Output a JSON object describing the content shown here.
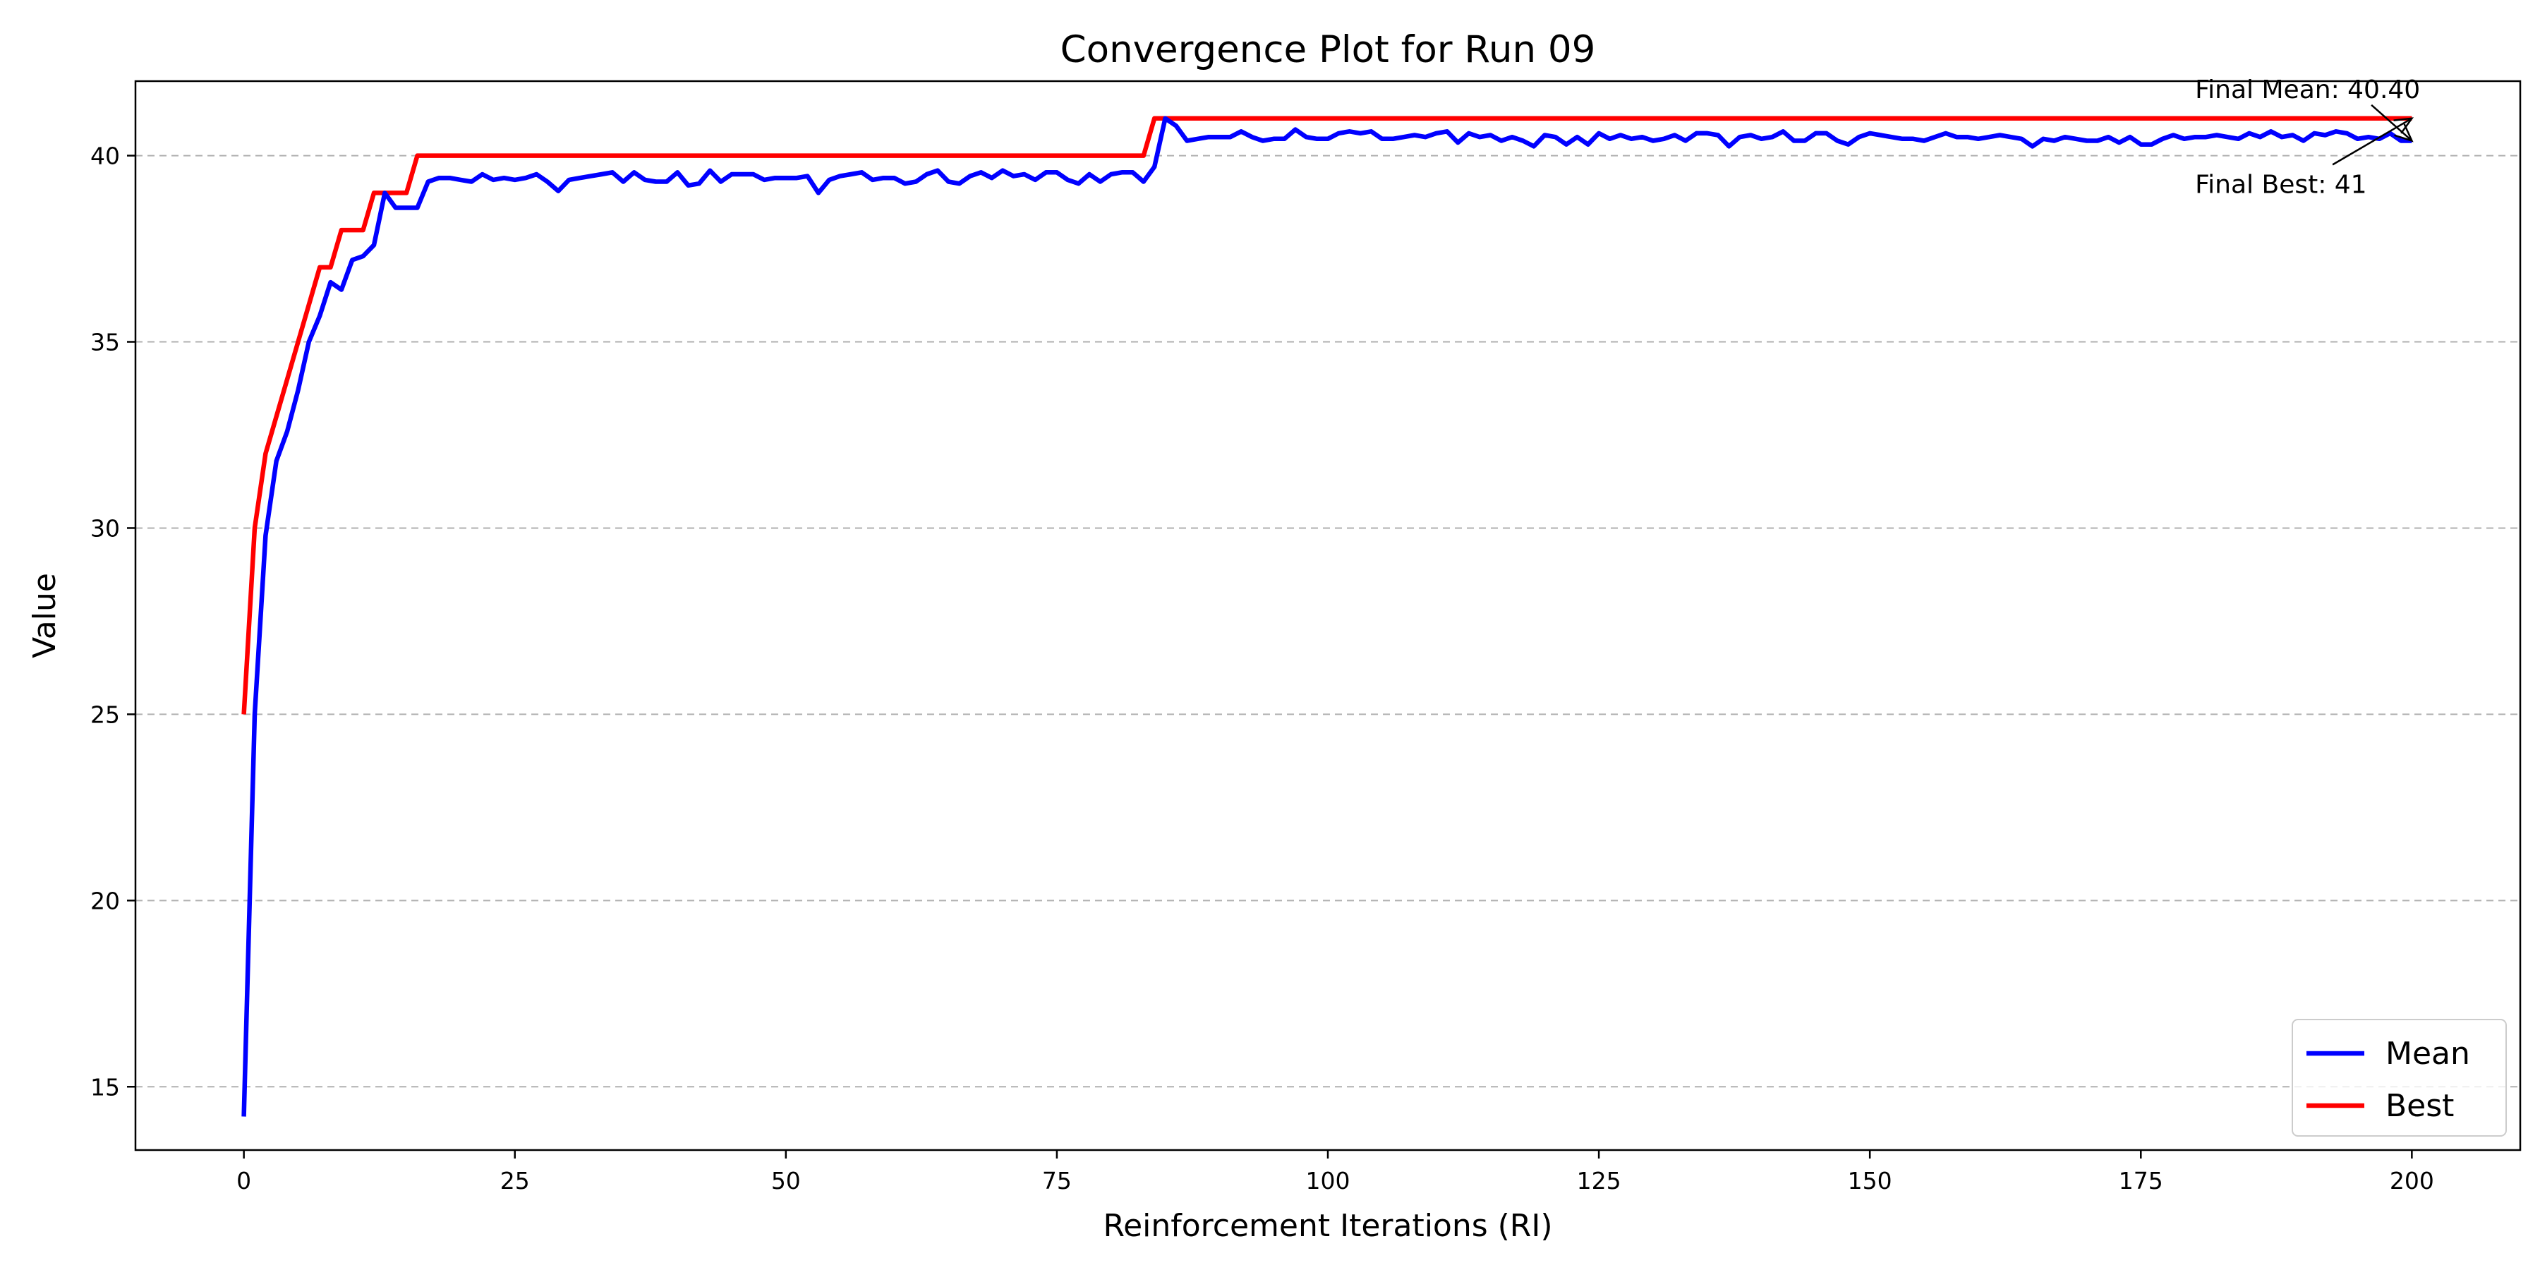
{
  "chart_data": {
    "type": "line",
    "title": "Convergence Plot for Run 09",
    "xlabel": "Reinforcement Iterations (RI)",
    "ylabel": "Value",
    "xlim": [
      -10,
      210
    ],
    "ylim": [
      13.3,
      42.0
    ],
    "xticks": [
      0,
      25,
      50,
      75,
      100,
      125,
      150,
      175,
      200
    ],
    "yticks": [
      15,
      20,
      25,
      30,
      35,
      40
    ],
    "grid": "horizontal-dashed",
    "legend_position": "bottom-right",
    "series": [
      {
        "name": "Mean",
        "color": "#0000ff",
        "points": [
          [
            0,
            14.2
          ],
          [
            1,
            25.0
          ],
          [
            2,
            29.8
          ],
          [
            3,
            31.8
          ],
          [
            4,
            32.6
          ],
          [
            5,
            33.7
          ],
          [
            6,
            35.0
          ],
          [
            7,
            35.7
          ],
          [
            8,
            36.6
          ],
          [
            9,
            36.4
          ],
          [
            10,
            37.2
          ],
          [
            11,
            37.3
          ],
          [
            12,
            37.6
          ],
          [
            13,
            39.0
          ],
          [
            14,
            38.6
          ],
          [
            15,
            38.6
          ],
          [
            16,
            38.6
          ],
          [
            17,
            39.3
          ],
          [
            18,
            39.4
          ],
          [
            19,
            39.4
          ],
          [
            20,
            39.35
          ],
          [
            21,
            39.3
          ],
          [
            22,
            39.5
          ],
          [
            23,
            39.35
          ],
          [
            24,
            39.4
          ],
          [
            25,
            39.35
          ],
          [
            26,
            39.4
          ],
          [
            27,
            39.5
          ],
          [
            28,
            39.3
          ],
          [
            29,
            39.05
          ],
          [
            30,
            39.35
          ],
          [
            31,
            39.4
          ],
          [
            32,
            39.45
          ],
          [
            33,
            39.5
          ],
          [
            34,
            39.55
          ],
          [
            35,
            39.3
          ],
          [
            36,
            39.55
          ],
          [
            37,
            39.35
          ],
          [
            38,
            39.3
          ],
          [
            39,
            39.3
          ],
          [
            40,
            39.55
          ],
          [
            41,
            39.2
          ],
          [
            42,
            39.25
          ],
          [
            43,
            39.6
          ],
          [
            44,
            39.3
          ],
          [
            45,
            39.5
          ],
          [
            46,
            39.5
          ],
          [
            47,
            39.5
          ],
          [
            48,
            39.35
          ],
          [
            49,
            39.4
          ],
          [
            50,
            39.4
          ],
          [
            51,
            39.4
          ],
          [
            52,
            39.45
          ],
          [
            53,
            39.0
          ],
          [
            54,
            39.35
          ],
          [
            55,
            39.45
          ],
          [
            56,
            39.5
          ],
          [
            57,
            39.55
          ],
          [
            58,
            39.35
          ],
          [
            59,
            39.4
          ],
          [
            60,
            39.4
          ],
          [
            61,
            39.25
          ],
          [
            62,
            39.3
          ],
          [
            63,
            39.5
          ],
          [
            64,
            39.6
          ],
          [
            65,
            39.3
          ],
          [
            66,
            39.25
          ],
          [
            67,
            39.45
          ],
          [
            68,
            39.55
          ],
          [
            69,
            39.4
          ],
          [
            70,
            39.6
          ],
          [
            71,
            39.45
          ],
          [
            72,
            39.5
          ],
          [
            73,
            39.35
          ],
          [
            74,
            39.55
          ],
          [
            75,
            39.55
          ],
          [
            76,
            39.35
          ],
          [
            77,
            39.25
          ],
          [
            78,
            39.5
          ],
          [
            79,
            39.3
          ],
          [
            80,
            39.5
          ],
          [
            81,
            39.55
          ],
          [
            82,
            39.55
          ],
          [
            83,
            39.3
          ],
          [
            84,
            39.7
          ],
          [
            85,
            41.0
          ],
          [
            86,
            40.8
          ],
          [
            87,
            40.4
          ],
          [
            88,
            40.45
          ],
          [
            89,
            40.5
          ],
          [
            90,
            40.5
          ],
          [
            91,
            40.5
          ],
          [
            92,
            40.65
          ],
          [
            93,
            40.5
          ],
          [
            94,
            40.4
          ],
          [
            95,
            40.45
          ],
          [
            96,
            40.45
          ],
          [
            97,
            40.7
          ],
          [
            98,
            40.5
          ],
          [
            99,
            40.45
          ],
          [
            100,
            40.45
          ],
          [
            101,
            40.6
          ],
          [
            102,
            40.65
          ],
          [
            103,
            40.6
          ],
          [
            104,
            40.65
          ],
          [
            105,
            40.45
          ],
          [
            106,
            40.45
          ],
          [
            107,
            40.5
          ],
          [
            108,
            40.55
          ],
          [
            109,
            40.5
          ],
          [
            110,
            40.6
          ],
          [
            111,
            40.65
          ],
          [
            112,
            40.35
          ],
          [
            113,
            40.6
          ],
          [
            114,
            40.5
          ],
          [
            115,
            40.55
          ],
          [
            116,
            40.4
          ],
          [
            117,
            40.5
          ],
          [
            118,
            40.4
          ],
          [
            119,
            40.25
          ],
          [
            120,
            40.55
          ],
          [
            121,
            40.5
          ],
          [
            122,
            40.3
          ],
          [
            123,
            40.5
          ],
          [
            124,
            40.3
          ],
          [
            125,
            40.6
          ],
          [
            126,
            40.45
          ],
          [
            127,
            40.55
          ],
          [
            128,
            40.45
          ],
          [
            129,
            40.5
          ],
          [
            130,
            40.4
          ],
          [
            131,
            40.45
          ],
          [
            132,
            40.55
          ],
          [
            133,
            40.4
          ],
          [
            134,
            40.6
          ],
          [
            135,
            40.6
          ],
          [
            136,
            40.55
          ],
          [
            137,
            40.25
          ],
          [
            138,
            40.5
          ],
          [
            139,
            40.55
          ],
          [
            140,
            40.45
          ],
          [
            141,
            40.5
          ],
          [
            142,
            40.65
          ],
          [
            143,
            40.4
          ],
          [
            144,
            40.4
          ],
          [
            145,
            40.6
          ],
          [
            146,
            40.6
          ],
          [
            147,
            40.4
          ],
          [
            148,
            40.3
          ],
          [
            149,
            40.5
          ],
          [
            150,
            40.6
          ],
          [
            151,
            40.55
          ],
          [
            152,
            40.5
          ],
          [
            153,
            40.45
          ],
          [
            154,
            40.45
          ],
          [
            155,
            40.4
          ],
          [
            156,
            40.5
          ],
          [
            157,
            40.6
          ],
          [
            158,
            40.5
          ],
          [
            159,
            40.5
          ],
          [
            160,
            40.45
          ],
          [
            161,
            40.5
          ],
          [
            162,
            40.55
          ],
          [
            163,
            40.5
          ],
          [
            164,
            40.45
          ],
          [
            165,
            40.25
          ],
          [
            166,
            40.45
          ],
          [
            167,
            40.4
          ],
          [
            168,
            40.5
          ],
          [
            169,
            40.45
          ],
          [
            170,
            40.4
          ],
          [
            171,
            40.4
          ],
          [
            172,
            40.5
          ],
          [
            173,
            40.35
          ],
          [
            174,
            40.5
          ],
          [
            175,
            40.3
          ],
          [
            176,
            40.3
          ],
          [
            177,
            40.45
          ],
          [
            178,
            40.55
          ],
          [
            179,
            40.45
          ],
          [
            180,
            40.5
          ],
          [
            181,
            40.5
          ],
          [
            182,
            40.55
          ],
          [
            183,
            40.5
          ],
          [
            184,
            40.45
          ],
          [
            185,
            40.6
          ],
          [
            186,
            40.5
          ],
          [
            187,
            40.65
          ],
          [
            188,
            40.5
          ],
          [
            189,
            40.55
          ],
          [
            190,
            40.4
          ],
          [
            191,
            40.6
          ],
          [
            192,
            40.55
          ],
          [
            193,
            40.65
          ],
          [
            194,
            40.6
          ],
          [
            195,
            40.45
          ],
          [
            196,
            40.5
          ],
          [
            197,
            40.45
          ],
          [
            198,
            40.6
          ],
          [
            199,
            40.4
          ],
          [
            200,
            40.4
          ]
        ]
      },
      {
        "name": "Best",
        "color": "#ff0000",
        "points": [
          [
            0,
            25
          ],
          [
            1,
            30
          ],
          [
            2,
            32
          ],
          [
            5,
            35
          ],
          [
            7,
            37
          ],
          [
            8,
            37
          ],
          [
            9,
            38
          ],
          [
            11,
            38
          ],
          [
            12,
            39
          ],
          [
            15,
            39
          ],
          [
            16,
            40
          ],
          [
            83,
            40
          ],
          [
            84,
            41
          ],
          [
            200,
            41
          ]
        ]
      }
    ],
    "annotations": [
      {
        "text": "Final Mean: 40.40",
        "target": [
          200,
          40.4
        ],
        "text_at": [
          180,
          41.55
        ]
      },
      {
        "text": "Final Best: 41",
        "target": [
          200,
          41.0
        ],
        "text_at": [
          180,
          39.0
        ]
      }
    ]
  }
}
